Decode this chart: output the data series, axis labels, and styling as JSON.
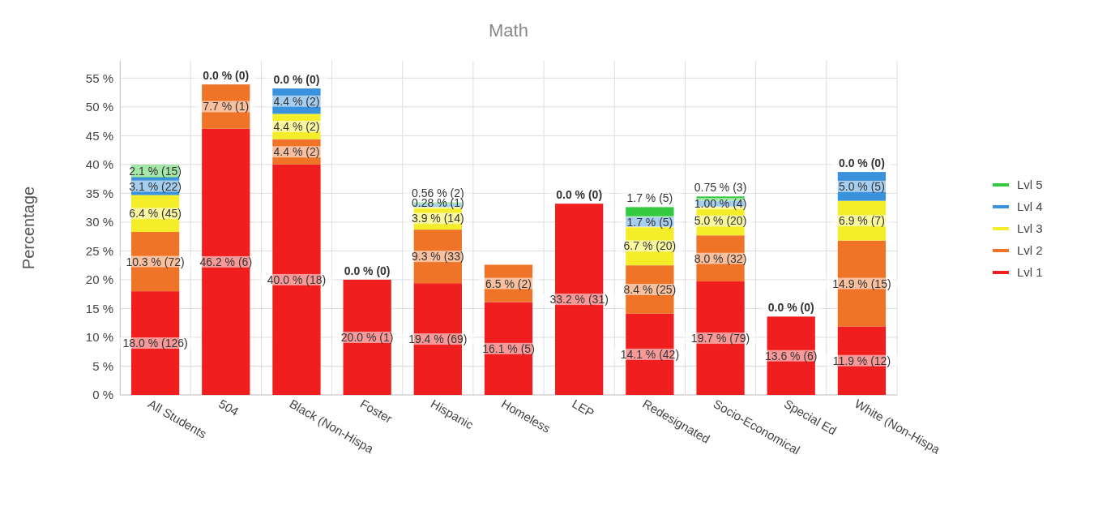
{
  "chart_data": {
    "type": "bar",
    "title": "Math",
    "ylabel": "Percentage",
    "stacked": true,
    "grid": true,
    "legend": "right",
    "categories": [
      "All Students",
      "504",
      "Black (Non-Hispa",
      "Foster",
      "Hispanic",
      "Homeless",
      "LEP",
      "Redesignated",
      "Socio-Economical",
      "Special Ed",
      "White (Non-Hispa"
    ],
    "ylim": [
      0,
      58
    ],
    "yticks": [
      {
        "value": 0,
        "label": "0 %"
      },
      {
        "value": 5,
        "label": "5 %"
      },
      {
        "value": 10,
        "label": "10 %"
      },
      {
        "value": 15,
        "label": "15 %"
      },
      {
        "value": 20,
        "label": "20 %"
      },
      {
        "value": 25,
        "label": "25 %"
      },
      {
        "value": 30,
        "label": "30 %"
      },
      {
        "value": 35,
        "label": "35 %"
      },
      {
        "value": 40,
        "label": "40 %"
      },
      {
        "value": 45,
        "label": "45 %"
      },
      {
        "value": 50,
        "label": "50 %"
      },
      {
        "value": 55,
        "label": "55 %"
      }
    ],
    "series": [
      {
        "name": "Lvl 1",
        "color": "#f01e1e",
        "values": [
          18.0,
          46.2,
          40.0,
          20.0,
          19.4,
          16.1,
          33.2,
          14.1,
          19.7,
          13.6,
          11.9
        ],
        "value_labels": [
          "18.0 % (126)",
          "46.2 % (6)",
          "40.0 % (18)",
          "20.0 % (1)",
          "19.4 % (69)",
          "16.1 % (5)",
          "33.2 % (31)",
          "14.1 % (42)",
          "19.7 % (79)",
          "13.6 % (6)",
          "11.9 % (12)"
        ]
      },
      {
        "name": "Lvl 2",
        "color": "#f07428",
        "values": [
          10.3,
          7.7,
          4.4,
          0.0,
          9.3,
          6.5,
          0.0,
          8.4,
          8.0,
          0.0,
          14.9
        ],
        "value_labels": [
          "10.3 % (72)",
          "7.7 % (1)",
          "4.4 % (2)",
          "0.0 % (0)",
          "9.3 % (33)",
          "6.5 % (2)",
          "0.0 % (0)",
          "8.4 % (25)",
          "8.0 % (32)",
          "0.0 % (0)",
          "14.9 % (15)"
        ]
      },
      {
        "name": "Lvl 3",
        "color": "#f4ee2a",
        "values": [
          6.4,
          0.0,
          4.4,
          0.0,
          3.9,
          0.0,
          0.0,
          6.7,
          5.0,
          0.0,
          6.9
        ],
        "value_labels": [
          "6.4 % (45)",
          "0.0 % (0)",
          "4.4 % (2)",
          null,
          "3.9 % (14)",
          null,
          null,
          "6.7 % (20)",
          "5.0 % (20)",
          null,
          "6.9 % (7)"
        ]
      },
      {
        "name": "Lvl 4",
        "color": "#3a92dc",
        "values": [
          3.1,
          0.0,
          4.4,
          0.0,
          0.56,
          0.0,
          0.0,
          1.7,
          1.0,
          0.0,
          5.0
        ],
        "value_labels": [
          "3.1 % (22)",
          null,
          "4.4 % (2)",
          null,
          "0.56 % (2)",
          null,
          null,
          "1.7 % (5)",
          "1.00 % (4)",
          null,
          "5.0 % (5)"
        ]
      },
      {
        "name": "Lvl 5",
        "color": "#34c940",
        "values": [
          2.1,
          0.0,
          0.0,
          0.0,
          0.28,
          0.0,
          0.0,
          1.7,
          0.75,
          0.0,
          0.0
        ],
        "value_labels": [
          "2.1 % (15)",
          null,
          "0.0 % (0)",
          null,
          "0.28 % (1)",
          null,
          null,
          "1.7 % (5)",
          "0.75 % (3)",
          null,
          "0.0 % (0)"
        ]
      }
    ]
  }
}
